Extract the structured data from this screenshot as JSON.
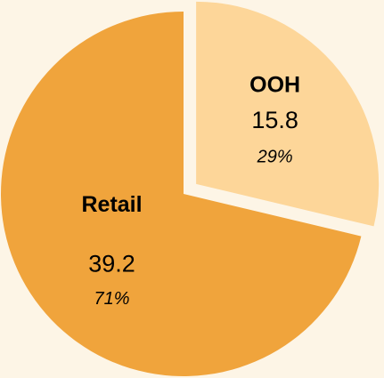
{
  "chart_data": {
    "type": "pie",
    "categories": [
      "OOH",
      "Retail"
    ],
    "values": [
      15.8,
      39.2
    ],
    "percent_labels": [
      "29%",
      "71%"
    ],
    "colors": [
      "#fdd699",
      "#f0a43c"
    ],
    "exploded": [
      true,
      false
    ]
  }
}
